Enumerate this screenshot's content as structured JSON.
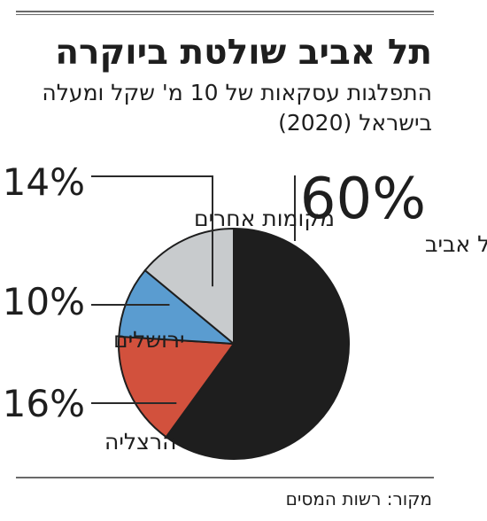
{
  "header": {
    "title": "תל אביב שולטת ביוקרה",
    "subtitle": "התפלגות עסקאות של 10 מ' שקל ומעלה בישראל (2020)"
  },
  "footer": {
    "source": "מקור: רשות המסים"
  },
  "colors": {
    "tel_aviv": "#1e1e1e",
    "herzliya": "#d2513d",
    "jerusalem": "#5a9cd0",
    "other": "#c8cbcd",
    "leader": "#2a2a2a"
  },
  "chart_data": {
    "type": "pie",
    "title": "תל אביב שולטת ביוקרה",
    "subtitle": "התפלגות עסקאות של 10 מ' שקל ומעלה בישראל (2020)",
    "unit": "%",
    "slices": [
      {
        "label": "תל אביב",
        "value": 60,
        "value_label": "60%"
      },
      {
        "label": "הרצליה",
        "value": 16,
        "value_label": "16%"
      },
      {
        "label": "ירושלים",
        "value": 10,
        "value_label": "10%"
      },
      {
        "label": "מקומות אחרים",
        "value": 14,
        "value_label": "14%"
      }
    ],
    "direction": "clockwise from top"
  }
}
